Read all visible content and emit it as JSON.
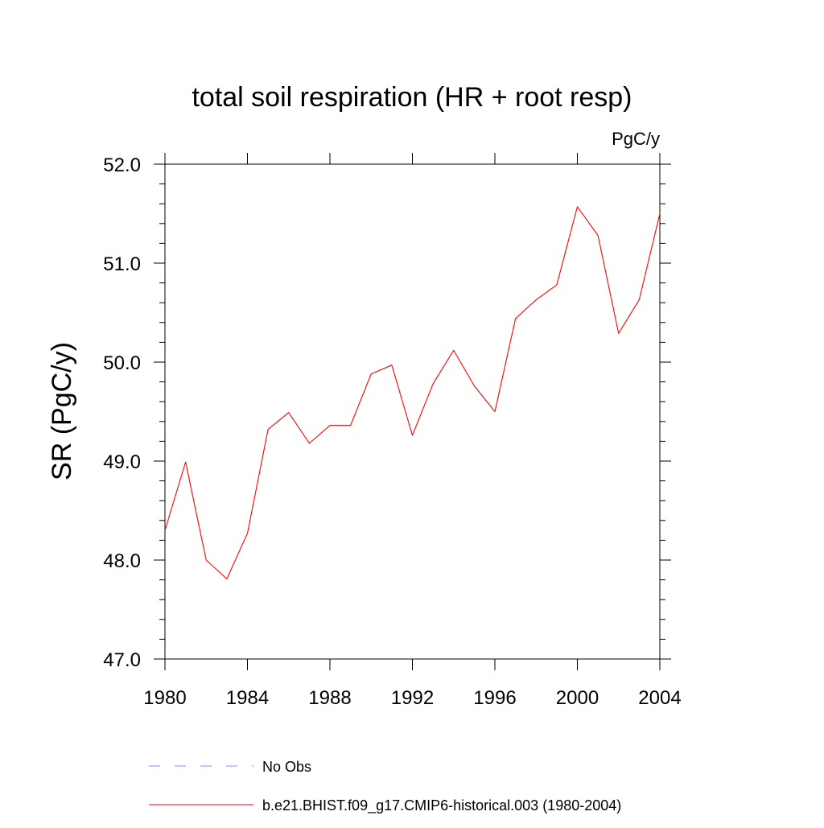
{
  "chart_data": {
    "type": "line",
    "title": "total soil respiration (HR + root resp)",
    "units_label": "PgC/y",
    "ylabel": "SR  (PgC/y)",
    "xlabel": "",
    "xlim": [
      1980,
      2004
    ],
    "ylim": [
      47.0,
      52.0
    ],
    "x_ticks": [
      1980,
      1984,
      1988,
      1992,
      1996,
      2000,
      2004
    ],
    "x_tick_labels": [
      "1980",
      "1984",
      "1988",
      "1992",
      "1996",
      "2000",
      "2004"
    ],
    "y_ticks": [
      47.0,
      48.0,
      49.0,
      50.0,
      51.0,
      52.0
    ],
    "y_tick_labels": [
      "47.0",
      "48.0",
      "49.0",
      "50.0",
      "51.0",
      "52.0"
    ],
    "grid": false,
    "legend_position": "bottom",
    "series": [
      {
        "name": "b.e21.BHIST.f09_g17.CMIP6-historical.003 (1980-2004)",
        "color": "#ff0000",
        "style": "solid",
        "x": [
          1980,
          1981,
          1982,
          1983,
          1984,
          1985,
          1986,
          1987,
          1988,
          1989,
          1990,
          1991,
          1992,
          1993,
          1994,
          1995,
          1996,
          1997,
          1998,
          1999,
          2000,
          2001,
          2002,
          2003,
          2004
        ],
        "y": [
          48.3,
          48.99,
          48.0,
          47.81,
          48.27,
          49.32,
          49.49,
          49.18,
          49.36,
          49.36,
          49.88,
          49.97,
          49.26,
          49.78,
          50.12,
          49.76,
          49.5,
          50.44,
          50.63,
          50.78,
          51.57,
          51.28,
          50.29,
          50.63,
          51.5
        ]
      }
    ],
    "legend": [
      {
        "label": "No Obs",
        "color": "#8a8aff",
        "style": "dashed"
      },
      {
        "label": "b.e21.BHIST.f09_g17.CMIP6-historical.003 (1980-2004)",
        "color": "#ff0000",
        "style": "solid"
      }
    ]
  }
}
